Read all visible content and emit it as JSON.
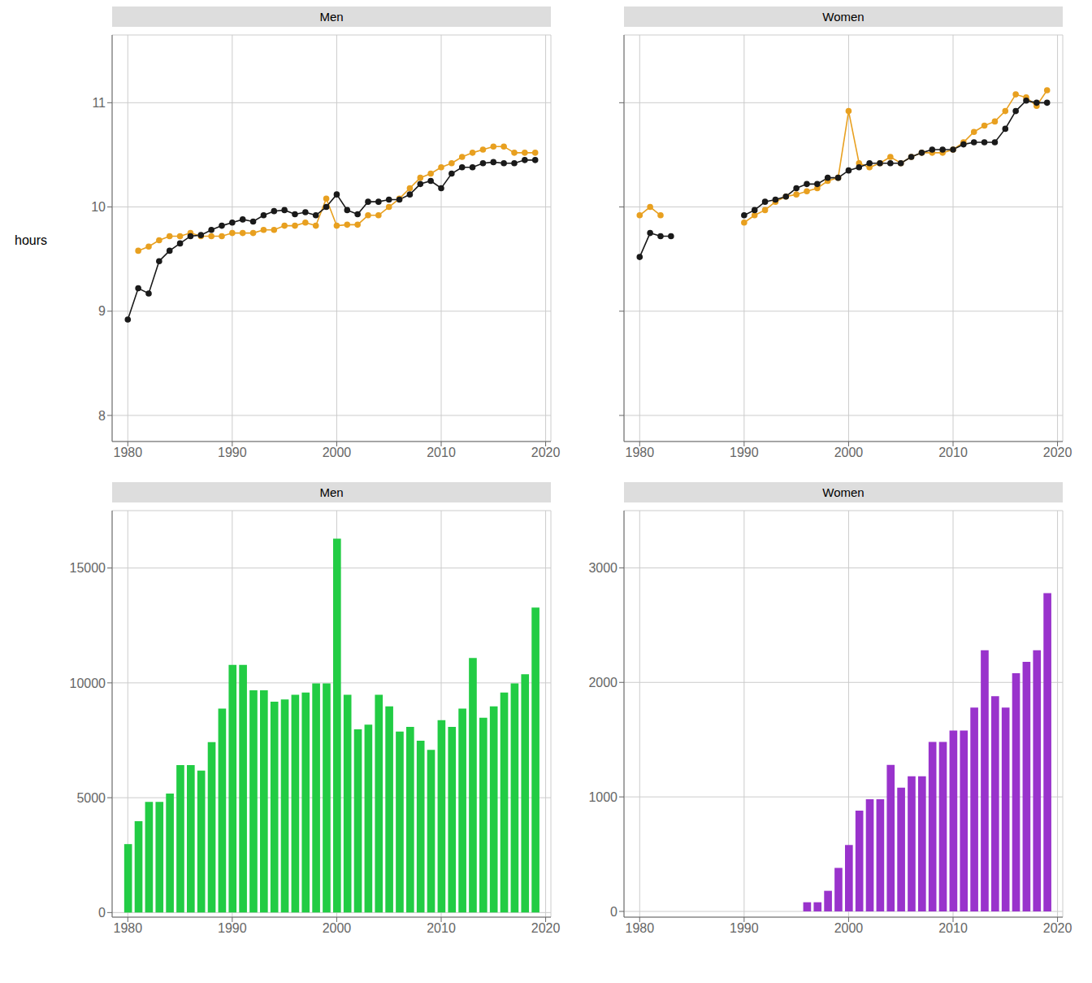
{
  "chart_data": [
    {
      "type": "line",
      "title": "Men",
      "ylabel": "hours",
      "x": [
        1980,
        1981,
        1982,
        1983,
        1984,
        1985,
        1986,
        1987,
        1988,
        1989,
        1990,
        1991,
        1992,
        1993,
        1994,
        1995,
        1996,
        1997,
        1998,
        1999,
        2000,
        2001,
        2002,
        2003,
        2004,
        2005,
        2006,
        2007,
        2008,
        2009,
        2010,
        2011,
        2012,
        2013,
        2014,
        2015,
        2016,
        2017,
        2018,
        2019
      ],
      "series": [
        {
          "color": "#E8A020",
          "marker": "circle",
          "values": [
            null,
            9.58,
            9.62,
            9.68,
            9.72,
            9.72,
            9.75,
            9.72,
            9.72,
            9.72,
            9.75,
            9.75,
            9.75,
            9.78,
            9.78,
            9.82,
            9.82,
            9.85,
            9.82,
            10.08,
            9.82,
            9.83,
            9.83,
            9.92,
            9.92,
            10.0,
            10.08,
            10.18,
            10.28,
            10.32,
            10.38,
            10.42,
            10.48,
            10.52,
            10.55,
            10.58,
            10.58,
            10.52,
            10.52,
            10.52
          ]
        },
        {
          "color": "#1a1a1a",
          "marker": "circle",
          "values": [
            8.92,
            9.22,
            9.17,
            9.48,
            9.58,
            9.65,
            9.72,
            9.73,
            9.78,
            9.82,
            9.85,
            9.88,
            9.86,
            9.92,
            9.96,
            9.97,
            9.93,
            9.95,
            9.92,
            10.0,
            10.12,
            9.97,
            9.93,
            10.05,
            10.05,
            10.07,
            10.07,
            10.12,
            10.22,
            10.25,
            10.18,
            10.32,
            10.38,
            10.38,
            10.42,
            10.43,
            10.42,
            10.42,
            10.45,
            10.45
          ]
        }
      ],
      "xlim": [
        1978.5,
        2020.5
      ],
      "xticks": [
        1980,
        1990,
        2000,
        2010,
        2020
      ],
      "ylim": [
        7.75,
        11.65
      ],
      "yticks": [
        8,
        9,
        10,
        11
      ],
      "grid": true
    },
    {
      "type": "line",
      "title": "Women",
      "tick_labels": "x",
      "x": [
        1980,
        1981,
        1982,
        1983,
        1984,
        1985,
        1986,
        1987,
        1988,
        1989,
        1990,
        1991,
        1992,
        1993,
        1994,
        1995,
        1996,
        1997,
        1998,
        1999,
        2000,
        2001,
        2002,
        2003,
        2004,
        2005,
        2006,
        2007,
        2008,
        2009,
        2010,
        2011,
        2012,
        2013,
        2014,
        2015,
        2016,
        2017,
        2018,
        2019
      ],
      "series": [
        {
          "color": "#E8A020",
          "marker": "circle",
          "values": [
            9.92,
            10.0,
            9.92,
            null,
            null,
            null,
            null,
            null,
            null,
            null,
            9.85,
            9.92,
            9.97,
            10.05,
            10.1,
            10.12,
            10.15,
            10.18,
            10.25,
            10.28,
            10.92,
            10.42,
            10.38,
            10.42,
            10.48,
            10.42,
            10.48,
            10.52,
            10.52,
            10.52,
            10.55,
            10.62,
            10.72,
            10.78,
            10.82,
            10.92,
            11.08,
            11.05,
            10.97,
            11.12
          ]
        },
        {
          "color": "#1a1a1a",
          "marker": "circle",
          "values": [
            9.52,
            9.75,
            9.72,
            9.72,
            null,
            null,
            null,
            null,
            null,
            null,
            9.92,
            9.97,
            10.05,
            10.07,
            10.1,
            10.18,
            10.22,
            10.22,
            10.28,
            10.28,
            10.35,
            10.38,
            10.42,
            10.42,
            10.42,
            10.42,
            10.48,
            10.52,
            10.55,
            10.55,
            10.55,
            10.6,
            10.62,
            10.62,
            10.62,
            10.75,
            10.92,
            11.02,
            11.0,
            11.0
          ]
        }
      ],
      "xlim": [
        1978.5,
        2020.5
      ],
      "xticks": [
        1980,
        1990,
        2000,
        2010,
        2020
      ],
      "ylim": [
        7.75,
        11.65
      ],
      "yticks": [
        8,
        9,
        10,
        11
      ],
      "grid": true
    },
    {
      "type": "bar",
      "title": "Men",
      "x": [
        1980,
        1981,
        1982,
        1983,
        1984,
        1985,
        1986,
        1987,
        1988,
        1989,
        1990,
        1991,
        1992,
        1993,
        1994,
        1995,
        1996,
        1997,
        1998,
        1999,
        2000,
        2001,
        2002,
        2003,
        2004,
        2005,
        2006,
        2007,
        2008,
        2009,
        2010,
        2011,
        2012,
        2013,
        2014,
        2015,
        2016,
        2017,
        2018,
        2019
      ],
      "values": [
        2980,
        3980,
        4820,
        4820,
        5180,
        6420,
        6420,
        6180,
        7420,
        8880,
        10780,
        10780,
        9680,
        9680,
        9180,
        9280,
        9480,
        9580,
        9980,
        9980,
        16280,
        9480,
        7980,
        8180,
        9480,
        8980,
        7880,
        8080,
        7480,
        7080,
        8380,
        8080,
        8880,
        11080,
        8480,
        8980,
        9580,
        9980,
        10380,
        13280
      ],
      "color": "#22CC44",
      "xlim": [
        1978.5,
        2020.5
      ],
      "xticks": [
        1980,
        1990,
        2000,
        2010,
        2020
      ],
      "ylim": [
        -200,
        17500
      ],
      "yticks": [
        0,
        5000,
        10000,
        15000
      ],
      "grid": true
    },
    {
      "type": "bar",
      "title": "Women",
      "x": [
        1980,
        1981,
        1982,
        1983,
        1984,
        1985,
        1986,
        1987,
        1988,
        1989,
        1990,
        1991,
        1992,
        1993,
        1994,
        1995,
        1996,
        1997,
        1998,
        1999,
        2000,
        2001,
        2002,
        2003,
        2004,
        2005,
        2006,
        2007,
        2008,
        2009,
        2010,
        2011,
        2012,
        2013,
        2014,
        2015,
        2016,
        2017,
        2018,
        2019
      ],
      "values": [
        0,
        0,
        0,
        0,
        0,
        0,
        0,
        0,
        0,
        0,
        0,
        0,
        0,
        0,
        0,
        0,
        80,
        80,
        180,
        380,
        580,
        880,
        980,
        980,
        1280,
        1080,
        1180,
        1180,
        1480,
        1480,
        1580,
        1580,
        1780,
        2280,
        1880,
        1780,
        2080,
        2180,
        2280,
        2780
      ],
      "color": "#9933CC",
      "xlim": [
        1978.5,
        2020.5
      ],
      "xticks": [
        1980,
        1990,
        2000,
        2010,
        2020
      ],
      "ylim": [
        -50,
        3500
      ],
      "yticks": [
        0,
        1000,
        2000,
        3000
      ],
      "grid": true
    }
  ]
}
